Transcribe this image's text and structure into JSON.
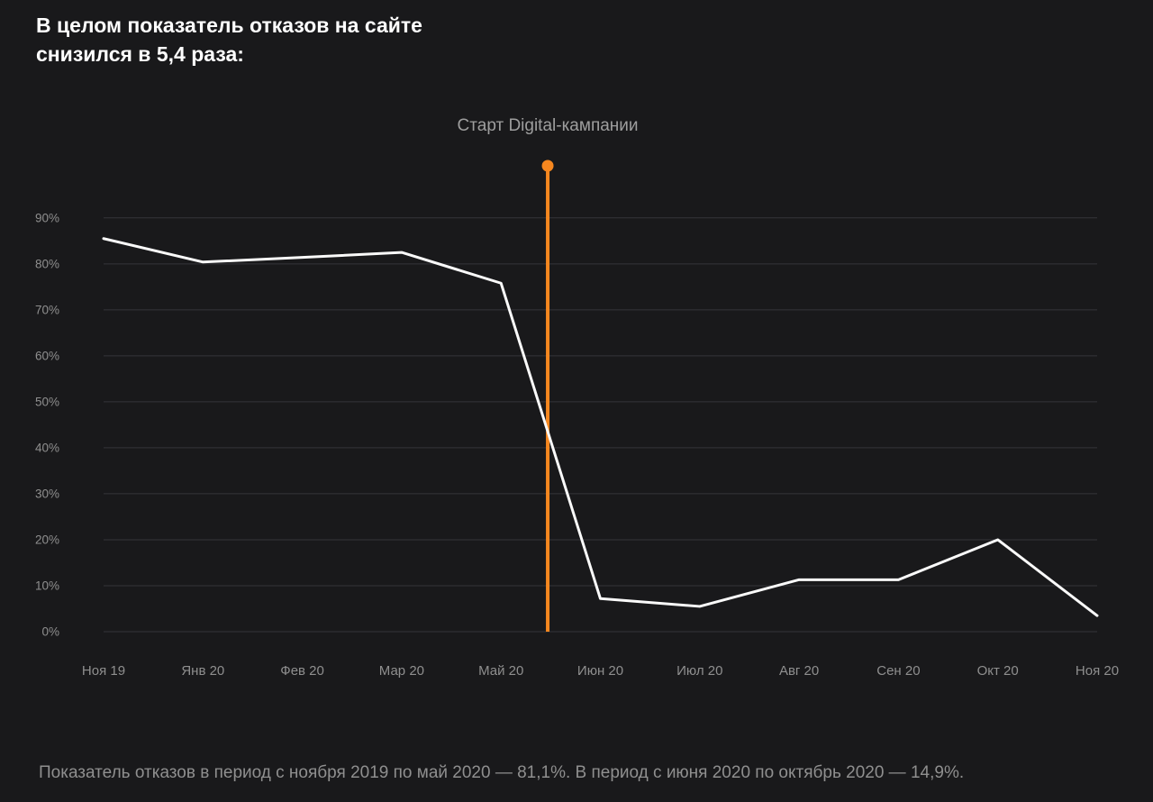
{
  "title": {
    "line1": "В целом показатель отказов на сайте",
    "line2": "снизился в 5,4 раза:"
  },
  "annotation": {
    "label": "Старт Digital-кампании"
  },
  "footer": {
    "text": "Показатель отказов в период с ноября 2019 по май 2020 — 81,1%. В период с июня 2020 по октябрь 2020 — 14,9%."
  },
  "colors": {
    "background": "#19191b",
    "title_text": "#ffffff",
    "axis_text": "#8f8f8f",
    "annotation_text": "#9e9e9e",
    "grid": "#35353a",
    "line": "#fafafa",
    "accent": "#f6871f"
  },
  "chart_data": {
    "type": "line",
    "categories": [
      "Ноя 19",
      "Янв 20",
      "Фев 20",
      "Мар 20",
      "Май 20",
      "Июн 20",
      "Июл 20",
      "Авг 20",
      "Сен 20",
      "Окт 20",
      "Ноя 20"
    ],
    "series": [
      {
        "name": "Показатель отказов",
        "values": [
          85.5,
          80.4,
          81.4,
          82.5,
          75.8,
          7.2,
          5.5,
          11.3,
          11.3,
          20.0,
          3.5
        ]
      }
    ],
    "title": "",
    "xlabel": "",
    "ylabel": "",
    "ylim": [
      0,
      100
    ],
    "yticks": [
      0,
      10,
      20,
      30,
      40,
      50,
      60,
      70,
      80,
      90
    ],
    "ytick_format": "{v}%",
    "grid": "horizontal",
    "legend": "none",
    "marker_line": {
      "label": "Старт Digital-кампании",
      "x_index": 4.47,
      "color": "#f6871f"
    }
  }
}
